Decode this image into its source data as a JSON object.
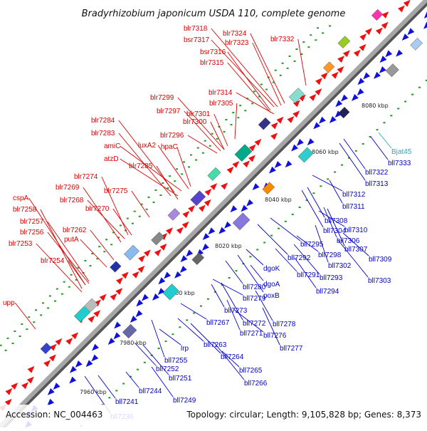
{
  "title": "Bradyrhizobium japonicum USDA 110, complete genome",
  "footer": {
    "accession": "Accession: NC_004463",
    "summary": "Topology: circular; Length: 9,105,828 bp; Genes: 8,373"
  },
  "colors": {
    "forward_label": "#dd0000",
    "reverse_label": "#0000cc",
    "rna_label": "#22aacc",
    "forward_arrow": "#ee1111",
    "reverse_arrow": "#1111dd",
    "backbone": "#999999",
    "tick": "#229922"
  },
  "ticks": [
    {
      "label": "7960 kbp"
    },
    {
      "label": "7980 kbp"
    },
    {
      "label": "8000 kbp"
    },
    {
      "label": "8020 kbp"
    },
    {
      "label": "8040 kbp"
    },
    {
      "label": "8060 kbp"
    },
    {
      "label": "8080 kbp"
    }
  ],
  "forward_labels": [
    {
      "text": "blr7318"
    },
    {
      "text": "blr7324"
    },
    {
      "text": "bsr7317"
    },
    {
      "text": "blr7323"
    },
    {
      "text": "blr7332"
    },
    {
      "text": "bsr7316"
    },
    {
      "text": "blr7315"
    },
    {
      "text": "blr7314"
    },
    {
      "text": "blr7299"
    },
    {
      "text": "blr7305"
    },
    {
      "text": "blr7297"
    },
    {
      "text": "blr7301"
    },
    {
      "text": "blr7300"
    },
    {
      "text": "blr7284"
    },
    {
      "text": "blr7296"
    },
    {
      "text": "blr7283"
    },
    {
      "text": "amiC"
    },
    {
      "text": "luxA2"
    },
    {
      "text": "hpaC"
    },
    {
      "text": "atzD"
    },
    {
      "text": "blr7285"
    },
    {
      "text": "blr7274"
    },
    {
      "text": "blr7269"
    },
    {
      "text": "blr7275"
    },
    {
      "text": "blr7268"
    },
    {
      "text": "cspA"
    },
    {
      "text": "blr7258"
    },
    {
      "text": "blr7270"
    },
    {
      "text": "blr7257"
    },
    {
      "text": "blr7262"
    },
    {
      "text": "blr7256"
    },
    {
      "text": "putA"
    },
    {
      "text": "blr7253"
    },
    {
      "text": "blr7254"
    },
    {
      "text": "upp"
    }
  ],
  "reverse_labels": [
    {
      "text": "Bjat45",
      "rna": true
    },
    {
      "text": "bll7333"
    },
    {
      "text": "bll7322"
    },
    {
      "text": "bll7313"
    },
    {
      "text": "bll7312"
    },
    {
      "text": "bll7311"
    },
    {
      "text": "bll7308"
    },
    {
      "text": "bll7304"
    },
    {
      "text": "bll7310"
    },
    {
      "text": "bll7295"
    },
    {
      "text": "bll7306"
    },
    {
      "text": "bll7307"
    },
    {
      "text": "bll7298"
    },
    {
      "text": "bll7309"
    },
    {
      "text": "bll7292"
    },
    {
      "text": "bll7302"
    },
    {
      "text": "dgoK"
    },
    {
      "text": "bll7291"
    },
    {
      "text": "bll7293"
    },
    {
      "text": "bll7303"
    },
    {
      "text": "dgoA"
    },
    {
      "text": "bll7280"
    },
    {
      "text": "bll7294"
    },
    {
      "text": "poxB"
    },
    {
      "text": "bll7279"
    },
    {
      "text": "bll7273"
    },
    {
      "text": "bll7278"
    },
    {
      "text": "bll7272"
    },
    {
      "text": "bll7267"
    },
    {
      "text": "bll7276"
    },
    {
      "text": "bll7271"
    },
    {
      "text": "bll7277"
    },
    {
      "text": "lrp"
    },
    {
      "text": "bll7263"
    },
    {
      "text": "bll7264"
    },
    {
      "text": "bll7255"
    },
    {
      "text": "bll7265"
    },
    {
      "text": "bll7252"
    },
    {
      "text": "bll7251"
    },
    {
      "text": "bll7266"
    },
    {
      "text": "bll7244"
    },
    {
      "text": "bll7241"
    },
    {
      "text": "bll7249"
    },
    {
      "text": "bll7236"
    }
  ]
}
